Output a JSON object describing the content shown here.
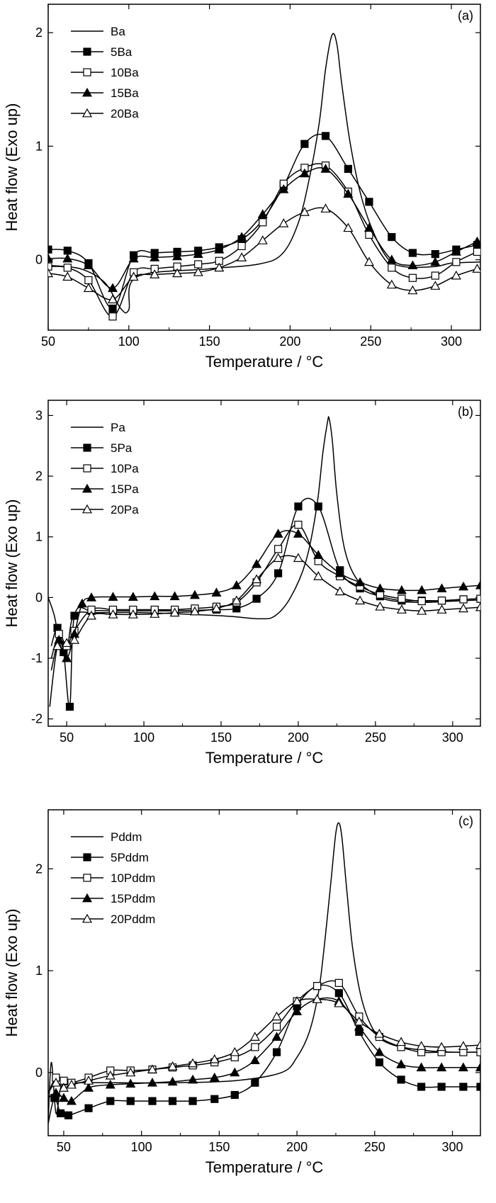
{
  "chart_data": [
    {
      "type": "line",
      "panel_label": "(a)",
      "xlabel": "Temperature / °C",
      "ylabel": "Heat flow (Exo up)",
      "xlim": [
        50,
        318
      ],
      "ylim": [
        -0.62,
        2.25
      ],
      "xticks": [
        50,
        100,
        150,
        200,
        250,
        300
      ],
      "yticks": [
        0,
        1,
        2
      ],
      "grid": false,
      "legend": "top-left",
      "series": [
        {
          "name": "Ba",
          "marker": "none",
          "x": [
            50,
            70,
            85,
            95,
            100,
            105,
            150,
            180,
            195,
            205,
            212,
            218,
            222,
            226,
            229,
            232,
            237,
            243,
            250,
            260,
            270,
            290,
            300,
            318
          ],
          "y": [
            -0.05,
            -0.08,
            -0.2,
            -0.43,
            -0.44,
            -0.15,
            -0.08,
            -0.04,
            0.05,
            0.32,
            0.72,
            1.2,
            1.68,
            1.98,
            1.9,
            1.55,
            1.05,
            0.62,
            0.3,
            0.02,
            -0.06,
            -0.06,
            -0.03,
            -0.02
          ]
        },
        {
          "name": "5Ba",
          "marker": "filled-square",
          "x": [
            50,
            62,
            75,
            90,
            103,
            116,
            130,
            143,
            156,
            170,
            183,
            196,
            209,
            222,
            236,
            249,
            263,
            276,
            290,
            303,
            316
          ],
          "y": [
            0.09,
            0.08,
            -0.03,
            -0.43,
            0.04,
            0.06,
            0.07,
            0.08,
            0.11,
            0.18,
            0.35,
            0.65,
            1.02,
            1.09,
            0.8,
            0.51,
            0.2,
            0.06,
            0.05,
            0.09,
            0.13
          ]
        },
        {
          "name": "10Ba",
          "marker": "open-square",
          "x": [
            50,
            62,
            75,
            90,
            103,
            116,
            130,
            143,
            156,
            170,
            183,
            196,
            209,
            222,
            236,
            249,
            263,
            276,
            290,
            303,
            316
          ],
          "y": [
            -0.06,
            -0.07,
            -0.18,
            -0.5,
            -0.11,
            -0.08,
            -0.06,
            -0.04,
            -0.01,
            0.12,
            0.33,
            0.67,
            0.81,
            0.83,
            0.6,
            0.22,
            -0.07,
            -0.16,
            -0.14,
            -0.02,
            0.07
          ]
        },
        {
          "name": "15Ba",
          "marker": "filled-triangle",
          "x": [
            50,
            62,
            75,
            90,
            103,
            116,
            130,
            143,
            156,
            170,
            183,
            196,
            209,
            222,
            236,
            249,
            263,
            276,
            290,
            303,
            316
          ],
          "y": [
            0.01,
            0.01,
            -0.05,
            -0.25,
            0.01,
            0.02,
            0.03,
            0.05,
            0.09,
            0.2,
            0.4,
            0.62,
            0.76,
            0.8,
            0.58,
            0.28,
            0.0,
            -0.05,
            -0.02,
            0.07,
            0.16
          ]
        },
        {
          "name": "20Ba",
          "marker": "open-triangle",
          "x": [
            50,
            62,
            75,
            90,
            103,
            116,
            130,
            143,
            156,
            170,
            183,
            196,
            209,
            222,
            236,
            249,
            263,
            276,
            290,
            303,
            316
          ],
          "y": [
            -0.12,
            -0.15,
            -0.25,
            -0.35,
            -0.15,
            -0.13,
            -0.12,
            -0.11,
            -0.07,
            0.02,
            0.17,
            0.32,
            0.42,
            0.45,
            0.28,
            -0.02,
            -0.22,
            -0.27,
            -0.23,
            -0.14,
            -0.08
          ]
        }
      ]
    },
    {
      "type": "line",
      "panel_label": "(b)",
      "xlabel": "Temperature / °C",
      "ylabel": "Heat flow (Exo up)",
      "xlim": [
        38,
        318
      ],
      "ylim": [
        -2.12,
        3.25
      ],
      "xticks": [
        50,
        100,
        150,
        200,
        250,
        300
      ],
      "yticks": [
        -2,
        -1,
        0,
        1,
        2,
        3
      ],
      "grid": false,
      "legend": "top-left",
      "series": [
        {
          "name": "Pa",
          "marker": "none",
          "x": [
            38,
            42,
            46,
            50,
            53,
            57,
            70,
            100,
            150,
            175,
            185,
            195,
            205,
            212,
            216,
            219,
            220,
            222,
            225,
            230,
            238,
            250,
            260,
            280,
            300,
            318
          ],
          "y": [
            0.0,
            -0.3,
            -0.8,
            -0.9,
            -0.4,
            -0.25,
            -0.25,
            -0.25,
            -0.3,
            -0.35,
            -0.3,
            0.0,
            0.6,
            1.5,
            2.4,
            2.9,
            2.95,
            2.6,
            1.7,
            0.8,
            0.3,
            0.05,
            -0.05,
            -0.08,
            -0.06,
            -0.04
          ]
        },
        {
          "name": "5Pa",
          "marker": "filled-square",
          "x": [
            40,
            44,
            48,
            52,
            55,
            66,
            80,
            93,
            107,
            120,
            133,
            147,
            160,
            173,
            187,
            200,
            213,
            227,
            240,
            253,
            267,
            280,
            293,
            307,
            318
          ],
          "y": [
            -0.8,
            -0.5,
            -0.9,
            -1.8,
            -0.3,
            -0.22,
            -0.22,
            -0.22,
            -0.22,
            -0.22,
            -0.21,
            -0.2,
            -0.18,
            -0.02,
            0.4,
            1.5,
            1.5,
            0.45,
            0.15,
            0.02,
            -0.05,
            -0.05,
            -0.05,
            -0.03,
            -0.02
          ]
        },
        {
          "name": "10Pa",
          "marker": "open-square",
          "x": [
            40,
            45,
            50,
            55,
            66,
            80,
            93,
            107,
            120,
            133,
            147,
            160,
            173,
            187,
            200,
            213,
            227,
            240,
            253,
            267,
            280,
            293,
            307,
            318
          ],
          "y": [
            -1.0,
            -0.6,
            -0.8,
            -0.55,
            -0.2,
            -0.2,
            -0.2,
            -0.2,
            -0.2,
            -0.18,
            -0.15,
            -0.08,
            0.25,
            0.8,
            1.2,
            0.6,
            0.35,
            0.18,
            0.05,
            -0.02,
            -0.06,
            -0.05,
            -0.03,
            -0.02
          ]
        },
        {
          "name": "15Pa",
          "marker": "filled-triangle",
          "x": [
            40,
            45,
            50,
            55,
            60,
            66,
            80,
            93,
            107,
            120,
            133,
            147,
            160,
            173,
            187,
            200,
            213,
            227,
            240,
            253,
            267,
            280,
            293,
            307,
            318
          ],
          "y": [
            -1.2,
            -0.7,
            -1.0,
            -0.6,
            -0.1,
            0.0,
            0.01,
            0.01,
            0.02,
            0.02,
            0.04,
            0.08,
            0.2,
            0.55,
            1.05,
            1.05,
            0.7,
            0.4,
            0.25,
            0.15,
            0.12,
            0.12,
            0.15,
            0.18,
            0.2
          ]
        },
        {
          "name": "20Pa",
          "marker": "open-triangle",
          "x": [
            39,
            44,
            50,
            55,
            66,
            80,
            93,
            107,
            120,
            133,
            147,
            160,
            173,
            187,
            200,
            213,
            227,
            240,
            253,
            267,
            280,
            293,
            307,
            318
          ],
          "y": [
            -1.8,
            -0.8,
            -0.75,
            -0.7,
            -0.3,
            -0.28,
            -0.28,
            -0.27,
            -0.25,
            -0.23,
            -0.18,
            -0.05,
            0.3,
            0.65,
            0.65,
            0.35,
            0.1,
            -0.05,
            -0.15,
            -0.2,
            -0.22,
            -0.2,
            -0.18,
            -0.16
          ]
        }
      ]
    },
    {
      "type": "line",
      "panel_label": "(c)",
      "xlabel": "Temperature / °C",
      "ylabel": "Heat flow (Exo up)",
      "xlim": [
        40,
        318
      ],
      "ylim": [
        -0.62,
        2.58
      ],
      "xticks": [
        50,
        100,
        150,
        200,
        250,
        300
      ],
      "yticks": [
        0,
        1,
        2
      ],
      "grid": false,
      "legend": "top-left",
      "series": [
        {
          "name": "Pddm",
          "marker": "none",
          "x": [
            40,
            42,
            45,
            48,
            52,
            60,
            80,
            120,
            160,
            190,
            200,
            208,
            214,
            218,
            222,
            225,
            227,
            229,
            232,
            236,
            242,
            250,
            260,
            280,
            300,
            318
          ],
          "y": [
            -0.5,
            0.1,
            -0.4,
            -0.15,
            -0.12,
            -0.1,
            -0.1,
            -0.1,
            -0.08,
            0.0,
            0.15,
            0.4,
            0.8,
            1.3,
            1.9,
            2.35,
            2.45,
            2.3,
            1.8,
            1.2,
            0.7,
            0.4,
            0.28,
            0.22,
            0.2,
            0.2
          ]
        },
        {
          "name": "5Pddm",
          "marker": "filled-square",
          "x": [
            40,
            44,
            48,
            53,
            66,
            80,
            93,
            107,
            120,
            133,
            147,
            160,
            173,
            187,
            200,
            213,
            227,
            240,
            253,
            267,
            280,
            293,
            307,
            318
          ],
          "y": [
            -0.5,
            -0.25,
            -0.4,
            -0.42,
            -0.35,
            -0.28,
            -0.28,
            -0.28,
            -0.28,
            -0.28,
            -0.26,
            -0.22,
            -0.1,
            0.2,
            0.65,
            0.85,
            0.78,
            0.4,
            0.1,
            -0.07,
            -0.14,
            -0.14,
            -0.14,
            -0.14
          ]
        },
        {
          "name": "10Pddm",
          "marker": "open-square",
          "x": [
            40,
            45,
            50,
            55,
            66,
            80,
            93,
            107,
            120,
            133,
            147,
            160,
            173,
            187,
            200,
            213,
            227,
            240,
            253,
            267,
            280,
            293,
            307,
            318
          ],
          "y": [
            -0.2,
            -0.05,
            -0.08,
            -0.1,
            -0.05,
            0.02,
            0.02,
            0.03,
            0.05,
            0.07,
            0.1,
            0.15,
            0.25,
            0.45,
            0.7,
            0.85,
            0.88,
            0.55,
            0.35,
            0.25,
            0.2,
            0.2,
            0.2,
            0.2
          ]
        },
        {
          "name": "15Pddm",
          "marker": "filled-triangle",
          "x": [
            40,
            45,
            50,
            55,
            66,
            80,
            93,
            107,
            120,
            133,
            147,
            160,
            173,
            187,
            200,
            213,
            227,
            240,
            253,
            267,
            280,
            293,
            307,
            318
          ],
          "y": [
            -0.25,
            -0.2,
            -0.25,
            -0.28,
            -0.15,
            -0.12,
            -0.11,
            -0.1,
            -0.09,
            -0.07,
            -0.05,
            0.0,
            0.12,
            0.35,
            0.6,
            0.72,
            0.7,
            0.45,
            0.2,
            0.08,
            0.05,
            0.05,
            0.05,
            0.05
          ]
        },
        {
          "name": "20Pddm",
          "marker": "open-triangle",
          "x": [
            40,
            45,
            50,
            55,
            66,
            80,
            93,
            107,
            120,
            133,
            147,
            160,
            173,
            187,
            200,
            213,
            227,
            240,
            253,
            267,
            280,
            293,
            307,
            318
          ],
          "y": [
            -0.2,
            -0.1,
            -0.15,
            -0.12,
            -0.08,
            -0.03,
            0.0,
            0.03,
            0.06,
            0.09,
            0.13,
            0.2,
            0.35,
            0.55,
            0.7,
            0.72,
            0.68,
            0.5,
            0.38,
            0.3,
            0.26,
            0.25,
            0.26,
            0.27
          ]
        }
      ]
    }
  ]
}
